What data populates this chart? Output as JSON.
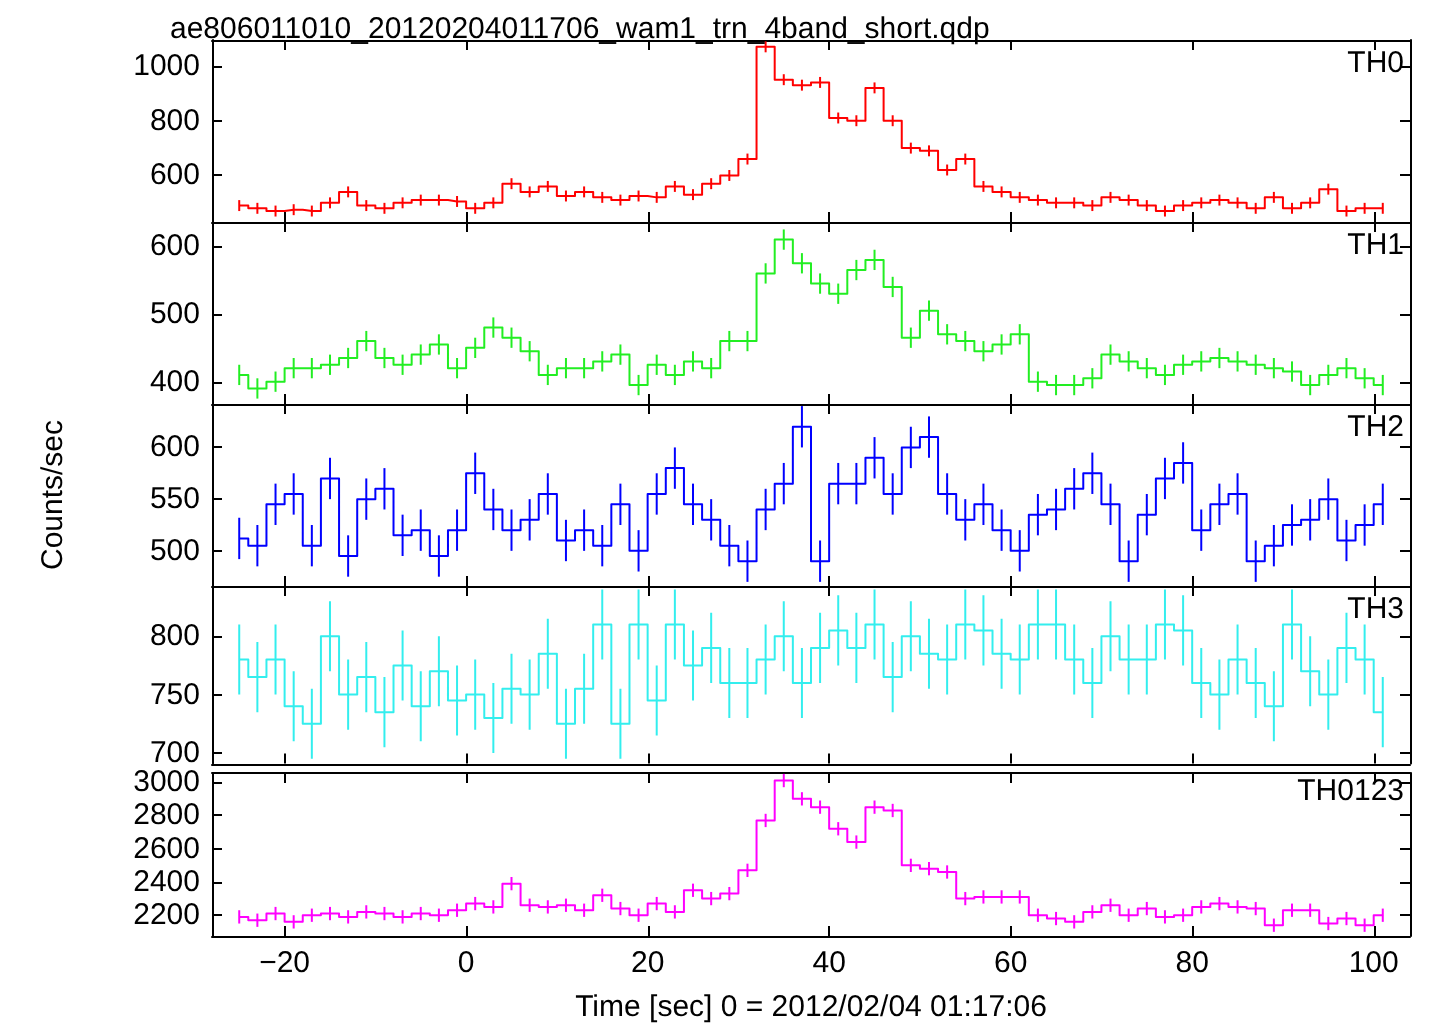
{
  "chart_data": [
    {
      "type": "step",
      "title": "ae806011010_20120204011706_wam1_trn_4band_short.qdp",
      "tick_labels": "y",
      "xlim": [
        -28,
        104
      ],
      "xticks": [
        -20,
        0,
        20,
        40,
        60,
        80,
        100
      ],
      "ylim": [
        430,
        1095
      ],
      "yticks": [
        600,
        800,
        1000
      ],
      "grid": false,
      "legend": false,
      "marker": "none",
      "x": [
        -25,
        -23,
        -21,
        -19,
        -17,
        -15,
        -13,
        -11,
        -9,
        -7,
        -5,
        -3,
        -1,
        1,
        3,
        5,
        7,
        9,
        11,
        13,
        15,
        17,
        19,
        21,
        23,
        25,
        27,
        29,
        31,
        33,
        35,
        37,
        39,
        41,
        43,
        45,
        47,
        49,
        51,
        53,
        55,
        57,
        59,
        61,
        63,
        65,
        67,
        69,
        71,
        73,
        75,
        77,
        79,
        81,
        83,
        85,
        87,
        89,
        91,
        93,
        95,
        97,
        99,
        101
      ],
      "series": [
        {
          "name": "TH0",
          "color": "#ff0000",
          "values": [
            490,
            480,
            470,
            475,
            470,
            500,
            540,
            490,
            480,
            500,
            510,
            510,
            505,
            480,
            500,
            570,
            540,
            560,
            525,
            540,
            520,
            510,
            525,
            520,
            560,
            530,
            570,
            600,
            660,
            1070,
            950,
            930,
            940,
            810,
            800,
            920,
            800,
            700,
            690,
            620,
            660,
            560,
            540,
            520,
            510,
            500,
            500,
            490,
            520,
            510,
            490,
            470,
            490,
            500,
            510,
            500,
            480,
            520,
            480,
            500,
            550,
            470,
            480,
            480
          ],
          "errors": [
            20,
            20,
            20,
            20,
            20,
            20,
            20,
            20,
            20,
            20,
            20,
            20,
            20,
            20,
            20,
            20,
            20,
            20,
            20,
            20,
            20,
            20,
            20,
            20,
            20,
            20,
            20,
            20,
            20,
            20,
            20,
            20,
            20,
            20,
            20,
            20,
            20,
            20,
            20,
            20,
            20,
            20,
            20,
            20,
            20,
            20,
            20,
            20,
            20,
            20,
            20,
            20,
            20,
            20,
            20,
            20,
            20,
            20,
            20,
            20,
            20,
            20,
            20,
            20
          ]
        }
      ]
    },
    {
      "type": "step",
      "tick_labels": "y",
      "xlim": [
        -28,
        104
      ],
      "xticks": [
        -20,
        0,
        20,
        40,
        60,
        80,
        100
      ],
      "ylim": [
        367,
        636
      ],
      "yticks": [
        400,
        500,
        600
      ],
      "grid": false,
      "legend": false,
      "marker": "none",
      "x": [
        -25,
        -23,
        -21,
        -19,
        -17,
        -15,
        -13,
        -11,
        -9,
        -7,
        -5,
        -3,
        -1,
        1,
        3,
        5,
        7,
        9,
        11,
        13,
        15,
        17,
        19,
        21,
        23,
        25,
        27,
        29,
        31,
        33,
        35,
        37,
        39,
        41,
        43,
        45,
        47,
        49,
        51,
        53,
        55,
        57,
        59,
        61,
        63,
        65,
        67,
        69,
        71,
        73,
        75,
        77,
        79,
        81,
        83,
        85,
        87,
        89,
        91,
        93,
        95,
        97,
        99,
        101
      ],
      "series": [
        {
          "name": "TH1",
          "color": "#22ee22",
          "values": [
            410,
            390,
            400,
            420,
            420,
            425,
            435,
            460,
            435,
            425,
            440,
            455,
            420,
            450,
            480,
            465,
            445,
            410,
            420,
            420,
            430,
            440,
            395,
            425,
            410,
            430,
            420,
            460,
            460,
            560,
            610,
            575,
            545,
            530,
            565,
            580,
            540,
            465,
            505,
            470,
            460,
            445,
            455,
            470,
            400,
            395,
            395,
            405,
            440,
            430,
            420,
            410,
            425,
            430,
            435,
            430,
            425,
            420,
            415,
            395,
            410,
            420,
            405,
            395
          ],
          "errors": [
            15,
            15,
            15,
            15,
            15,
            15,
            15,
            15,
            15,
            15,
            15,
            15,
            15,
            15,
            15,
            15,
            15,
            15,
            15,
            15,
            15,
            15,
            15,
            15,
            15,
            15,
            15,
            15,
            15,
            15,
            15,
            15,
            15,
            15,
            15,
            15,
            15,
            15,
            15,
            15,
            15,
            15,
            15,
            15,
            15,
            15,
            15,
            15,
            15,
            15,
            15,
            15,
            15,
            15,
            15,
            15,
            15,
            15,
            15,
            15,
            15,
            15,
            15,
            15
          ]
        }
      ]
    },
    {
      "type": "step",
      "ylabel": "Counts/sec",
      "tick_labels": "y",
      "xlim": [
        -28,
        104
      ],
      "xticks": [
        -20,
        0,
        20,
        40,
        60,
        80,
        100
      ],
      "ylim": [
        466,
        642
      ],
      "yticks": [
        500,
        550,
        600
      ],
      "grid": false,
      "legend": false,
      "marker": "none",
      "x": [
        -25,
        -23,
        -21,
        -19,
        -17,
        -15,
        -13,
        -11,
        -9,
        -7,
        -5,
        -3,
        -1,
        1,
        3,
        5,
        7,
        9,
        11,
        13,
        15,
        17,
        19,
        21,
        23,
        25,
        27,
        29,
        31,
        33,
        35,
        37,
        39,
        41,
        43,
        45,
        47,
        49,
        51,
        53,
        55,
        57,
        59,
        61,
        63,
        65,
        67,
        69,
        71,
        73,
        75,
        77,
        79,
        81,
        83,
        85,
        87,
        89,
        91,
        93,
        95,
        97,
        99,
        101
      ],
      "series": [
        {
          "name": "TH2",
          "color": "#0000ff",
          "values": [
            512,
            505,
            545,
            555,
            505,
            570,
            495,
            550,
            560,
            515,
            520,
            495,
            520,
            575,
            540,
            520,
            530,
            555,
            510,
            520,
            505,
            545,
            500,
            555,
            580,
            545,
            530,
            505,
            490,
            540,
            565,
            620,
            490,
            565,
            565,
            590,
            555,
            600,
            610,
            555,
            530,
            545,
            520,
            500,
            535,
            540,
            560,
            575,
            545,
            490,
            535,
            570,
            585,
            520,
            545,
            555,
            490,
            505,
            525,
            530,
            550,
            510,
            525,
            545
          ],
          "errors": [
            20,
            20,
            20,
            20,
            20,
            20,
            20,
            20,
            20,
            20,
            20,
            20,
            20,
            20,
            20,
            20,
            20,
            20,
            20,
            20,
            20,
            20,
            20,
            20,
            20,
            20,
            20,
            20,
            20,
            20,
            20,
            20,
            20,
            20,
            20,
            20,
            20,
            20,
            20,
            20,
            20,
            20,
            20,
            20,
            20,
            20,
            20,
            20,
            20,
            20,
            20,
            20,
            20,
            20,
            20,
            20,
            20,
            20,
            20,
            20,
            20,
            20,
            20,
            20
          ]
        }
      ]
    },
    {
      "type": "step",
      "tick_labels": "y",
      "xlim": [
        -28,
        104
      ],
      "xticks": [
        -20,
        0,
        20,
        40,
        60,
        80,
        100
      ],
      "ylim": [
        691,
        843
      ],
      "yticks": [
        700,
        750,
        800
      ],
      "grid": false,
      "legend": false,
      "marker": "none",
      "x": [
        -25,
        -23,
        -21,
        -19,
        -17,
        -15,
        -13,
        -11,
        -9,
        -7,
        -5,
        -3,
        -1,
        1,
        3,
        5,
        7,
        9,
        11,
        13,
        15,
        17,
        19,
        21,
        23,
        25,
        27,
        29,
        31,
        33,
        35,
        37,
        39,
        41,
        43,
        45,
        47,
        49,
        51,
        53,
        55,
        57,
        59,
        61,
        63,
        65,
        67,
        69,
        71,
        73,
        75,
        77,
        79,
        81,
        83,
        85,
        87,
        89,
        91,
        93,
        95,
        97,
        99,
        101
      ],
      "series": [
        {
          "name": "TH3",
          "color": "#33eeee",
          "values": [
            780,
            765,
            780,
            740,
            725,
            800,
            750,
            765,
            735,
            775,
            740,
            770,
            745,
            750,
            730,
            755,
            750,
            785,
            725,
            755,
            810,
            725,
            810,
            745,
            810,
            775,
            790,
            760,
            760,
            780,
            800,
            760,
            790,
            805,
            790,
            810,
            765,
            800,
            785,
            780,
            810,
            805,
            785,
            780,
            810,
            810,
            780,
            760,
            800,
            780,
            780,
            810,
            805,
            760,
            750,
            780,
            760,
            740,
            810,
            770,
            750,
            790,
            780,
            735
          ],
          "errors": [
            30,
            30,
            30,
            30,
            30,
            30,
            30,
            30,
            30,
            30,
            30,
            30,
            30,
            30,
            30,
            30,
            30,
            30,
            30,
            30,
            30,
            30,
            30,
            30,
            30,
            30,
            30,
            30,
            30,
            30,
            30,
            30,
            30,
            30,
            30,
            30,
            30,
            30,
            30,
            30,
            30,
            30,
            30,
            30,
            30,
            30,
            30,
            30,
            30,
            30,
            30,
            30,
            30,
            30,
            30,
            30,
            30,
            30,
            30,
            30,
            30,
            30,
            30,
            30
          ]
        }
      ]
    },
    {
      "type": "step",
      "xlabel": "Time [sec] 0 = 2012/02/04 01:17:06",
      "xlim": [
        -28,
        104
      ],
      "xticks": [
        -20,
        0,
        20,
        40,
        60,
        80,
        100
      ],
      "ylim": [
        2075,
        3055
      ],
      "yticks": [
        2200,
        2400,
        2600,
        2800,
        3000
      ],
      "grid": false,
      "legend": false,
      "marker": "none",
      "x": [
        -25,
        -23,
        -21,
        -19,
        -17,
        -15,
        -13,
        -11,
        -9,
        -7,
        -5,
        -3,
        -1,
        1,
        3,
        5,
        7,
        9,
        11,
        13,
        15,
        17,
        19,
        21,
        23,
        25,
        27,
        29,
        31,
        33,
        35,
        37,
        39,
        41,
        43,
        45,
        47,
        49,
        51,
        53,
        55,
        57,
        59,
        61,
        63,
        65,
        67,
        69,
        71,
        73,
        75,
        77,
        79,
        81,
        83,
        85,
        87,
        89,
        91,
        93,
        95,
        97,
        99,
        101
      ],
      "series": [
        {
          "name": "TH0123",
          "color": "#ff00ff",
          "values": [
            2190,
            2170,
            2210,
            2160,
            2200,
            2210,
            2190,
            2220,
            2210,
            2190,
            2210,
            2200,
            2230,
            2270,
            2250,
            2390,
            2260,
            2250,
            2260,
            2230,
            2320,
            2240,
            2200,
            2270,
            2220,
            2350,
            2300,
            2330,
            2470,
            2770,
            3010,
            2900,
            2850,
            2720,
            2640,
            2850,
            2830,
            2500,
            2480,
            2460,
            2300,
            2310,
            2310,
            2310,
            2200,
            2180,
            2160,
            2220,
            2260,
            2200,
            2240,
            2190,
            2200,
            2250,
            2270,
            2250,
            2240,
            2140,
            2230,
            2230,
            2150,
            2180,
            2140,
            2200
          ],
          "errors": [
            40,
            40,
            40,
            40,
            40,
            40,
            40,
            40,
            40,
            40,
            40,
            40,
            40,
            40,
            40,
            40,
            40,
            40,
            40,
            40,
            40,
            40,
            40,
            40,
            40,
            40,
            40,
            40,
            40,
            40,
            40,
            40,
            40,
            40,
            40,
            40,
            40,
            40,
            40,
            40,
            40,
            40,
            40,
            40,
            40,
            40,
            40,
            40,
            40,
            40,
            40,
            40,
            40,
            40,
            40,
            40,
            40,
            40,
            40,
            40,
            40,
            40,
            40,
            40
          ]
        }
      ]
    }
  ]
}
